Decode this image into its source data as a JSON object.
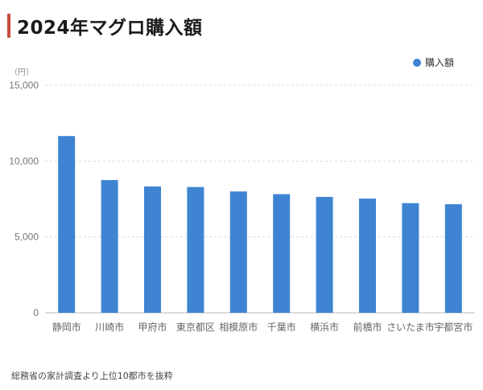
{
  "title": "2024年マグロ購入額",
  "source_note": "総務省の家計調査より上位10都市を抜粋",
  "colors": {
    "bar": "#3f84d3",
    "accent": "#c94a3c",
    "grid": "#d9d9d9"
  },
  "chart_data": {
    "type": "bar",
    "unit_label": "（円）",
    "categories": [
      "静岡市",
      "川崎市",
      "甲府市",
      "東京都区",
      "相模原市",
      "千葉市",
      "横浜市",
      "前橋市",
      "さいたま市",
      "宇都宮市"
    ],
    "series": [
      {
        "name": "購入額",
        "values": [
          11650,
          8750,
          8330,
          8290,
          8000,
          7820,
          7640,
          7530,
          7230,
          7160
        ]
      }
    ],
    "ylim": [
      0,
      15000
    ],
    "yticks": [
      0,
      5000,
      10000,
      15000
    ],
    "ytick_labels": [
      "0",
      "5,000",
      "10,000",
      "15,000"
    ],
    "grid": true,
    "legend": "top-right"
  }
}
